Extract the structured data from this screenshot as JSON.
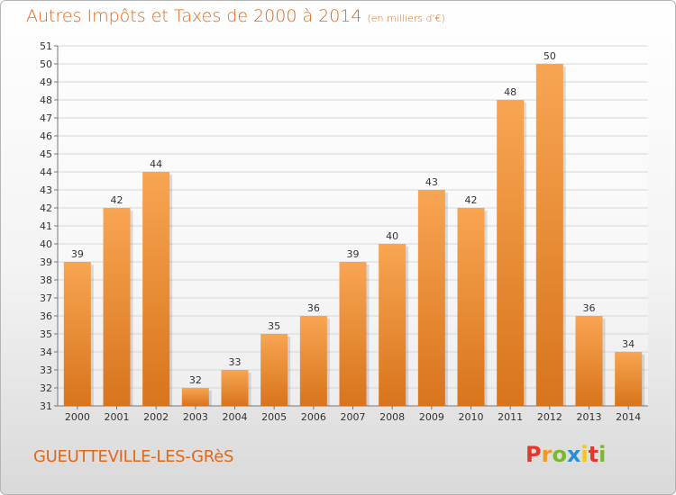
{
  "header": {
    "title": "Autres Impôts et Taxes de 2000 à 2014",
    "subtitle": "(en milliers d'€)"
  },
  "footer": {
    "commune": "GUEUTTEVILLE-LES-GRèS",
    "logo_letters": [
      "P",
      "r",
      "o",
      "x",
      "i",
      "t",
      "i"
    ]
  },
  "colors": {
    "accent": "#e06818",
    "bar_light": "#f8a552",
    "bar_dark": "#d8741c",
    "logo": [
      "#e2382d",
      "#f39a1b",
      "#7ab82e",
      "#2a8fd2",
      "#f5c518",
      "#e2382d",
      "#7ab82e"
    ]
  },
  "chart_data": {
    "type": "bar",
    "title": "Autres Impôts et Taxes de 2000 à 2014",
    "subtitle": "(en milliers d'€)",
    "xlabel": "",
    "ylabel": "",
    "categories": [
      "2000",
      "2001",
      "2002",
      "2003",
      "2004",
      "2005",
      "2006",
      "2007",
      "2008",
      "2009",
      "2010",
      "2011",
      "2012",
      "2013",
      "2014"
    ],
    "values": [
      39,
      42,
      44,
      32,
      33,
      35,
      36,
      39,
      40,
      43,
      42,
      48,
      50,
      36,
      34
    ],
    "ylim": [
      31,
      51
    ],
    "yticks": [
      31,
      32,
      33,
      34,
      35,
      36,
      37,
      38,
      39,
      40,
      41,
      42,
      43,
      44,
      45,
      46,
      47,
      48,
      49,
      50,
      51
    ],
    "grid": true,
    "data_labels": true
  }
}
